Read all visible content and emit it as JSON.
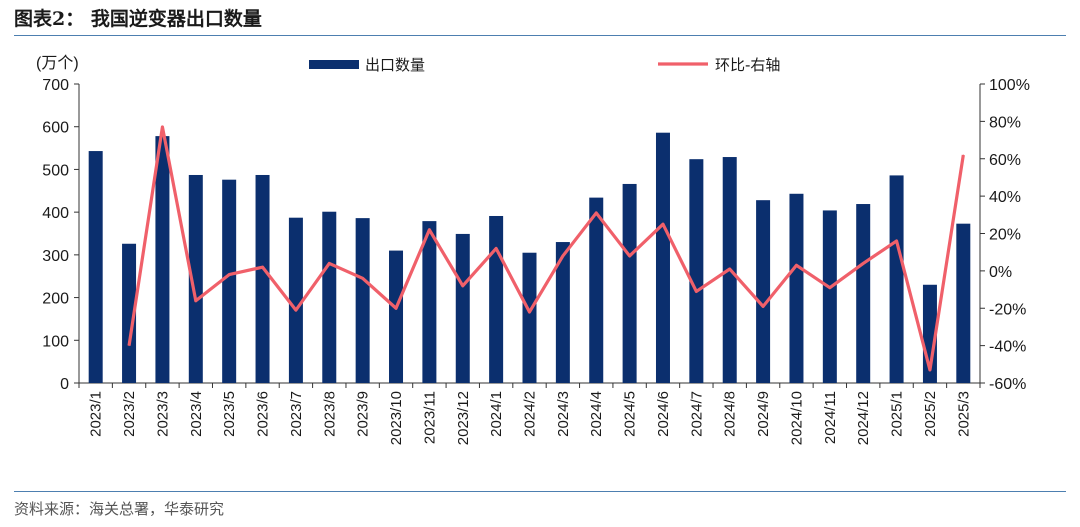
{
  "header": {
    "title": "图表2：  我国逆变器出口数量"
  },
  "footer": {
    "source": "资料来源：海关总署，华泰研究"
  },
  "chart_data": {
    "type": "bar",
    "categories": [
      "2023/1",
      "2023/2",
      "2023/3",
      "2023/4",
      "2023/5",
      "2023/6",
      "2023/7",
      "2023/8",
      "2023/9",
      "2023/10",
      "2023/11",
      "2023/12",
      "2024/1",
      "2024/2",
      "2024/3",
      "2024/4",
      "2024/5",
      "2024/6",
      "2024/7",
      "2024/8",
      "2024/9",
      "2024/10",
      "2024/11",
      "2024/12",
      "2025/1",
      "2025/2",
      "2025/3"
    ],
    "y_unit_label": "(万个)",
    "ylim": [
      0,
      700
    ],
    "yticks": [
      0,
      100,
      200,
      300,
      400,
      500,
      600,
      700
    ],
    "y2lim": [
      -60,
      100
    ],
    "y2ticks": [
      "-60%",
      "-40%",
      "-20%",
      "0%",
      "20%",
      "40%",
      "60%",
      "80%",
      "100%"
    ],
    "legend_position": "top",
    "series": [
      {
        "name": "出口数量",
        "type": "bar",
        "color": "#0b2f6e",
        "axis": "left",
        "values": [
          543,
          326,
          578,
          487,
          476,
          487,
          387,
          401,
          386,
          310,
          379,
          349,
          391,
          305,
          330,
          434,
          466,
          586,
          524,
          529,
          428,
          443,
          404,
          419,
          486,
          230,
          373
        ]
      },
      {
        "name": "环比-右轴",
        "type": "line",
        "color": "#f0606a",
        "axis": "right",
        "values": [
          null,
          -40,
          77,
          -16,
          -2,
          2,
          -21,
          4,
          -4,
          -20,
          22,
          -8,
          12,
          -22,
          8,
          31,
          8,
          25,
          -11,
          1,
          -19,
          3,
          -9,
          4,
          16,
          -53,
          62
        ]
      }
    ]
  }
}
